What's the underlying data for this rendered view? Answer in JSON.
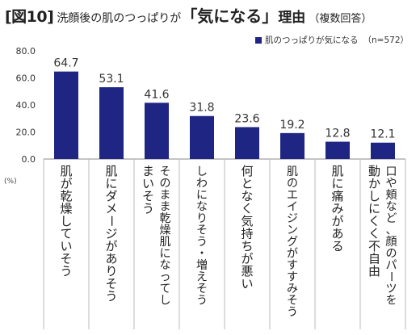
{
  "title": {
    "figure": "[図10]",
    "prefix": "洗顔後の肌のつっぱりが",
    "highlight": "「気になる」",
    "suffix": "理由",
    "note": "（複数回答）"
  },
  "legend": {
    "label": "肌のつっぱりが気になる",
    "n": "（n=572）"
  },
  "chart_data": {
    "type": "bar",
    "categories": [
      "肌が乾燥していそう",
      "肌にダメージがありそう",
      "そのまま乾燥肌になってしまいそう",
      "しわになりそう・増えそう",
      "何となく気持ちが悪い",
      "肌のエイジングがすすみそう",
      "肌に痛みがある",
      "口や頬など、顔のパーツを動かしにくく不自由"
    ],
    "category_lines": [
      [
        "肌が乾燥していそう"
      ],
      [
        "肌にダメージがありそう"
      ],
      [
        "そのまま乾燥肌になってし",
        "まいそう"
      ],
      [
        "しわになりそう・増えそう"
      ],
      [
        "何となく気持ちが悪い"
      ],
      [
        "肌のエイジングがすすみそう"
      ],
      [
        "肌に痛みがある"
      ],
      [
        "口や頬など、顔のパーツを",
        "動かしにくく不自由"
      ]
    ],
    "series": [
      {
        "name": "肌のつっぱりが気になる",
        "values": [
          64.7,
          53.1,
          41.6,
          31.8,
          23.6,
          19.2,
          12.8,
          12.1
        ]
      }
    ],
    "data_labels": [
      "64.7",
      "53.1",
      "41.6",
      "31.8",
      "23.6",
      "19.2",
      "12.8",
      "12.1"
    ],
    "ylim": [
      0,
      80
    ],
    "yticks": [
      "0.0",
      "20.0",
      "40.0",
      "60.0",
      "80.0"
    ],
    "yunit": "(%)",
    "bar_color": "#1f2583",
    "grid": false
  }
}
